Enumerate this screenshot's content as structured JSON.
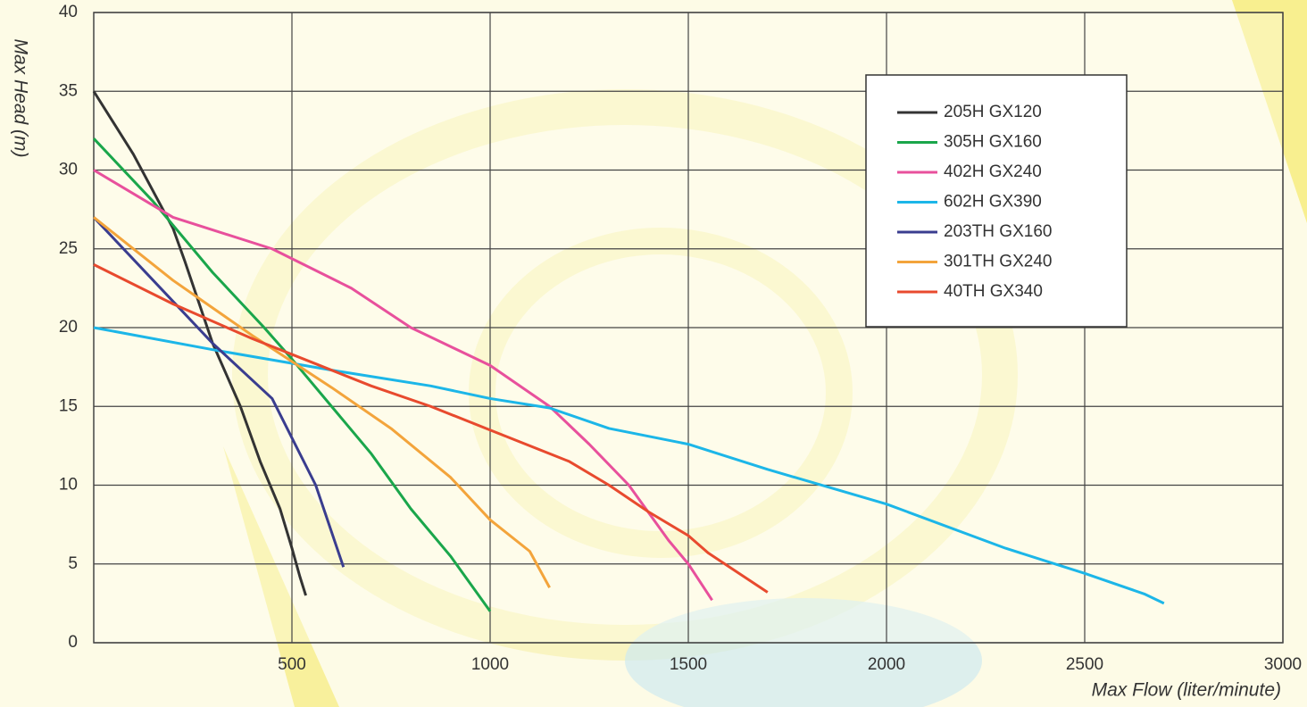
{
  "chart_data": {
    "type": "line",
    "x_label": "Max Flow (liter/minute)",
    "y_label": "Max Head (m)",
    "xlim": [
      0,
      3000
    ],
    "ylim": [
      0,
      40
    ],
    "xticks": [
      500,
      1000,
      1500,
      2000,
      2500,
      3000
    ],
    "yticks": [
      0,
      5,
      10,
      15,
      20,
      25,
      30,
      35,
      40
    ],
    "grid": true,
    "legend": "upper right",
    "series": [
      {
        "name": "205H GX120",
        "color": "#333333",
        "x": [
          0,
          100,
          200,
          230,
          300,
          370,
          420,
          470,
          500,
          520,
          535
        ],
        "values": [
          35,
          31,
          26.3,
          24.2,
          19,
          15,
          11.5,
          8.5,
          6,
          4.2,
          3
        ]
      },
      {
        "name": "305H GX160",
        "color": "#1aa64b",
        "x": [
          0,
          150,
          300,
          430,
          500,
          600,
          700,
          800,
          900,
          1000
        ],
        "values": [
          32,
          28,
          23.5,
          20,
          18,
          15,
          12,
          8.5,
          5.5,
          2
        ]
      },
      {
        "name": "402H GX240",
        "color": "#e8509c",
        "x": [
          0,
          200,
          450,
          650,
          800,
          1000,
          1150,
          1250,
          1350,
          1450,
          1500,
          1560
        ],
        "values": [
          30,
          27,
          25,
          22.5,
          20,
          17.6,
          15,
          12.6,
          10,
          6.5,
          5,
          2.7
        ]
      },
      {
        "name": "602H GX390",
        "color": "#1cb6e8",
        "x": [
          0,
          300,
          600,
          850,
          1000,
          1150,
          1300,
          1500,
          1700,
          2000,
          2300,
          2500,
          2650,
          2700
        ],
        "values": [
          20,
          18.6,
          17.3,
          16.3,
          15.5,
          14.9,
          13.6,
          12.6,
          11,
          8.8,
          6,
          4.4,
          3.1,
          2.5
        ]
      },
      {
        "name": "203TH GX160",
        "color": "#3a3d8f",
        "x": [
          0,
          150,
          300,
          450,
          500,
          560,
          630
        ],
        "values": [
          27,
          23,
          19,
          15.5,
          13,
          10,
          4.8
        ]
      },
      {
        "name": "301TH GX240",
        "color": "#f3a43b",
        "x": [
          0,
          200,
          400,
          600,
          750,
          900,
          1000,
          1100,
          1150
        ],
        "values": [
          27,
          23,
          19.5,
          16.2,
          13.6,
          10.5,
          7.8,
          5.8,
          3.5
        ]
      },
      {
        "name": "40TH GX340",
        "color": "#e84a2e",
        "x": [
          0,
          200,
          400,
          550,
          700,
          850,
          1000,
          1200,
          1300,
          1400,
          1500,
          1550,
          1700
        ],
        "values": [
          24,
          21.5,
          19.3,
          17.8,
          16.3,
          15,
          13.5,
          11.5,
          10,
          8.3,
          6.8,
          5.7,
          3.2
        ]
      }
    ]
  }
}
